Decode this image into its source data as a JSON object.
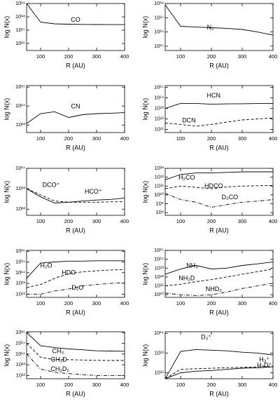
{
  "chart_data": [
    {
      "type": "line",
      "xlabel": "R (AU)",
      "ylabel": "log N(x)",
      "log_y": true,
      "x": [
        50,
        100,
        150,
        200,
        250,
        300,
        350,
        400
      ],
      "xlim": [
        50,
        400
      ],
      "xticks": [
        100,
        200,
        300,
        400
      ],
      "ylim": [
        3000000000000000.0,
        1e+19
      ],
      "yticks": [
        {
          "value": 1e+16,
          "label": "10¹⁶"
        },
        {
          "value": 1e+17,
          "label": "10¹⁷"
        },
        {
          "value": 1e+18,
          "label": "10¹⁸"
        },
        {
          "value": 1e+19,
          "label": "10¹⁹"
        }
      ],
      "series": [
        {
          "name": "CO",
          "color": "#000000",
          "style": "solid",
          "values": [
            1e+19,
            4e+17,
            3e+17,
            2.8e+17,
            2.7e+17,
            2.65e+17,
            2.6e+17,
            2.6e+17
          ]
        }
      ]
    },
    {
      "type": "line",
      "xlabel": "R (AU)",
      "ylabel": "log N(x)",
      "log_y": true,
      "x": [
        50,
        100,
        150,
        200,
        250,
        300,
        350,
        400
      ],
      "xlim": [
        50,
        400
      ],
      "xticks": [
        100,
        200,
        300,
        400
      ],
      "ylim": [
        500000000000000.0,
        1e+18
      ],
      "yticks": [
        {
          "value": 1000000000000000.0,
          "label": "10¹⁵"
        },
        {
          "value": 1e+16,
          "label": "10¹⁶"
        },
        {
          "value": 1e+17,
          "label": "10¹⁷"
        },
        {
          "value": 1e+18,
          "label": "10¹⁸"
        }
      ],
      "series": [
        {
          "name": "N₂",
          "color": "#000000",
          "style": "solid",
          "values": [
            8e+17,
            2.5e+16,
            2.2e+16,
            2e+16,
            1.8e+16,
            1.5e+16,
            1e+16,
            6000000000000000.0
          ]
        }
      ]
    },
    {
      "type": "line",
      "xlabel": "R (AU)",
      "ylabel": "log N(x)",
      "log_y": true,
      "x": [
        50,
        100,
        150,
        200,
        250,
        300,
        350,
        400
      ],
      "xlim": [
        50,
        400
      ],
      "xticks": [
        100,
        200,
        300,
        400
      ],
      "ylim": [
        4000000000000.0,
        1200000000000000.0
      ],
      "yticks": [
        {
          "value": 10000000000000.0,
          "label": "10¹³"
        },
        {
          "value": 100000000000000.0,
          "label": "10¹⁴"
        },
        {
          "value": 1000000000000000.0,
          "label": "10¹⁵"
        }
      ],
      "series": [
        {
          "name": "CN",
          "color": "#000000",
          "style": "solid",
          "values": [
            12000000000000.0,
            40000000000000.0,
            50000000000000.0,
            25000000000000.0,
            35000000000000.0,
            40000000000000.0,
            42000000000000.0,
            45000000000000.0
          ]
        }
      ]
    },
    {
      "type": "line",
      "xlabel": "R (AU)",
      "ylabel": "log N(x)",
      "log_y": true,
      "x": [
        50,
        100,
        150,
        200,
        250,
        300,
        350,
        400
      ],
      "xlim": [
        50,
        400
      ],
      "xticks": [
        100,
        200,
        300,
        400
      ],
      "ylim": [
        50000000000.0,
        1500000000000000.0
      ],
      "yticks": [
        {
          "value": 100000000000.0,
          "label": "10¹¹"
        },
        {
          "value": 1000000000000.0,
          "label": "10¹²"
        },
        {
          "value": 10000000000000.0,
          "label": "10¹³"
        },
        {
          "value": 100000000000000.0,
          "label": "10¹⁴"
        },
        {
          "value": 1000000000000000.0,
          "label": "10¹⁵"
        }
      ],
      "series": [
        {
          "name": "HCN",
          "color": "#000000",
          "style": "solid",
          "values": [
            10000000000000.0,
            30000000000000.0,
            30000000000000.0,
            25000000000000.0,
            27000000000000.0,
            28000000000000.0,
            29000000000000.0,
            30000000000000.0
          ]
        },
        {
          "name": "DCN",
          "color": "#000000",
          "style": "dashed",
          "values": [
            400000000000.0,
            300000000000.0,
            200000000000.0,
            300000000000.0,
            500000000000.0,
            800000000000.0,
            1000000000000.0,
            1200000000000.0
          ]
        }
      ]
    },
    {
      "type": "line",
      "xlabel": "R (AU)",
      "ylabel": "log N(x)",
      "log_y": true,
      "x": [
        50,
        100,
        150,
        200,
        250,
        300,
        350,
        400
      ],
      "xlim": [
        50,
        400
      ],
      "xticks": [
        100,
        200,
        300,
        400
      ],
      "ylim": [
        500000000000.0,
        100000000000000.0
      ],
      "yticks": [
        {
          "value": 1000000000000.0,
          "label": "10¹²"
        },
        {
          "value": 10000000000000.0,
          "label": "10¹³"
        },
        {
          "value": 100000000000000.0,
          "label": "10¹⁴"
        }
      ],
      "series": [
        {
          "name": "DCO⁺",
          "color": "#000000",
          "style": "dashed",
          "values": [
            10000000000000.0,
            5000000000000.0,
            2500000000000.0,
            2200000000000.0,
            2200000000000.0,
            2200000000000.0,
            2300000000000.0,
            2300000000000.0
          ]
        },
        {
          "name": "HCO⁺",
          "color": "#000000",
          "style": "solid",
          "values": [
            10000000000000.0,
            4000000000000.0,
            2000000000000.0,
            2200000000000.0,
            2500000000000.0,
            2800000000000.0,
            3000000000000.0,
            3500000000000.0
          ]
        }
      ]
    },
    {
      "type": "line",
      "xlabel": "R (AU)",
      "ylabel": "log N(x)",
      "log_y": true,
      "x": [
        50,
        100,
        150,
        200,
        250,
        300,
        350,
        400
      ],
      "xlim": [
        50,
        400
      ],
      "xticks": [
        100,
        200,
        300,
        400
      ],
      "ylim": [
        50000000.0,
        10000000000000.0
      ],
      "yticks": [
        {
          "value": 100000000.0,
          "label": "10⁸"
        },
        {
          "value": 1000000000.0,
          "label": "10⁹"
        },
        {
          "value": 10000000000.0,
          "label": "10¹⁰"
        },
        {
          "value": 100000000000.0,
          "label": "10¹¹"
        },
        {
          "value": 1000000000000.0,
          "label": "10¹²"
        },
        {
          "value": 10000000000000.0,
          "label": "10¹³"
        }
      ],
      "series": [
        {
          "name": "H₂CO",
          "color": "#000000",
          "style": "solid",
          "values": [
            500000000000.0,
            2000000000000.0,
            3000000000000.0,
            3000000000000.0,
            3500000000000.0,
            4000000000000.0,
            4000000000000.0,
            4000000000000.0
          ]
        },
        {
          "name": "HDCO",
          "color": "#000000",
          "style": "dashed",
          "values": [
            50000000000.0,
            100000000000.0,
            70000000000.0,
            50000000000.0,
            80000000000.0,
            100000000000.0,
            110000000000.0,
            120000000000.0
          ]
        },
        {
          "name": "D₂CO",
          "color": "#000000",
          "style": "dashdot",
          "values": [
            15000000000.0,
            3000000000.0,
            1500000000.0,
            400000000.0,
            800000000.0,
            1500000000.0,
            2000000000.0,
            3000000000.0
          ]
        }
      ]
    },
    {
      "type": "line",
      "xlabel": "R (AU)",
      "ylabel": "log N(x)",
      "log_y": true,
      "x": [
        50,
        100,
        150,
        200,
        250,
        300,
        350,
        400
      ],
      "xlim": [
        50,
        400
      ],
      "xticks": [
        100,
        200,
        300,
        400
      ],
      "ylim": [
        500000000000.0,
        1.2e+16
      ],
      "yticks": [
        {
          "value": 1000000000000.0,
          "label": "10¹²"
        },
        {
          "value": 10000000000000.0,
          "label": "10¹³"
        },
        {
          "value": 100000000000000.0,
          "label": "10¹⁴"
        },
        {
          "value": 1000000000000000.0,
          "label": "10¹⁵"
        },
        {
          "value": 1e+16,
          "label": "10¹⁶"
        }
      ],
      "series": [
        {
          "name": "H₂O",
          "color": "#000000",
          "style": "solid",
          "values": [
            30000000000000.0,
            800000000000000.0,
            1000000000000000.0,
            1200000000000000.0,
            1200000000000000.0,
            1300000000000000.0,
            1300000000000000.0,
            1300000000000000.0
          ]
        },
        {
          "name": "HDO",
          "color": "#000000",
          "style": "dashed",
          "values": [
            4000000000000.0,
            8000000000000.0,
            30000000000000.0,
            80000000000000.0,
            120000000000000.0,
            150000000000000.0,
            180000000000000.0,
            200000000000000.0
          ]
        },
        {
          "name": "D₂O",
          "color": "#000000",
          "style": "dashdot",
          "values": [
            1000000000000.0,
            1000000000000.0,
            2000000000000.0,
            3000000000000.0,
            6000000000000.0,
            8000000000000.0,
            10000000000000.0,
            12000000000000.0
          ]
        }
      ]
    },
    {
      "type": "line",
      "xlabel": "R (AU)",
      "ylabel": "log N(x)",
      "log_y": true,
      "x": [
        50,
        100,
        150,
        200,
        250,
        300,
        350,
        400
      ],
      "xlim": [
        50,
        400
      ],
      "xticks": [
        100,
        200,
        300,
        400
      ],
      "ylim": [
        5000000000.0,
        1000000000000000.0
      ],
      "yticks": [
        {
          "value": 10000000000.0,
          "label": "10¹⁰"
        },
        {
          "value": 100000000000.0,
          "label": "10¹¹"
        },
        {
          "value": 1000000000000.0,
          "label": "10¹²"
        },
        {
          "value": 10000000000000.0,
          "label": "10¹³"
        },
        {
          "value": 100000000000000.0,
          "label": "10¹⁴"
        },
        {
          "value": 1000000000000000.0,
          "label": "10¹⁵"
        }
      ],
      "series": [
        {
          "name": "NH₃",
          "color": "#000000",
          "style": "solid",
          "values": [
            2000000000000.0,
            8000000000000.0,
            20000000000000.0,
            8000000000000.0,
            10000000000000.0,
            20000000000000.0,
            30000000000000.0,
            50000000000000.0
          ]
        },
        {
          "name": "NH₂D",
          "color": "#000000",
          "style": "dashed",
          "values": [
            100000000000.0,
            150000000000.0,
            300000000000.0,
            500000000000.0,
            1000000000000.0,
            2000000000000.0,
            4000000000000.0,
            8000000000000.0
          ]
        },
        {
          "name": "NHD₂",
          "color": "#000000",
          "style": "dashdot",
          "values": [
            15000000000.0,
            10000000000.0,
            8000000000.0,
            10000000000.0,
            20000000000.0,
            50000000000.0,
            100000000000.0,
            200000000000.0
          ]
        }
      ]
    },
    {
      "type": "line",
      "xlabel": "R (AU)",
      "ylabel": "log N(x)",
      "log_y": true,
      "x": [
        50,
        100,
        150,
        200,
        250,
        300,
        350,
        400
      ],
      "xlim": [
        50,
        400
      ],
      "xticks": [
        100,
        200,
        300,
        400
      ],
      "ylim": [
        500000000000.0,
        1.2e+16
      ],
      "yticks": [
        {
          "value": 1000000000000.0,
          "label": "10¹²"
        },
        {
          "value": 10000000000000.0,
          "label": "10¹³"
        },
        {
          "value": 100000000000000.0,
          "label": "10¹⁴"
        },
        {
          "value": 1000000000000000.0,
          "label": "10¹⁵"
        },
        {
          "value": 1e+16,
          "label": "10¹⁶"
        }
      ],
      "series": [
        {
          "name": "CH₄",
          "color": "#000000",
          "style": "solid",
          "values": [
            1e+16,
            600000000000000.0,
            400000000000000.0,
            300000000000000.0,
            250000000000000.0,
            200000000000000.0,
            190000000000000.0,
            180000000000000.0
          ]
        },
        {
          "name": "CH₃D",
          "color": "#000000",
          "style": "dashed",
          "values": [
            1000000000000000.0,
            50000000000000.0,
            30000000000000.0,
            30000000000000.0,
            28000000000000.0,
            26000000000000.0,
            25000000000000.0,
            25000000000000.0
          ]
        },
        {
          "name": "CH₂D₂",
          "color": "#000000",
          "style": "dashdot",
          "values": [
            100000000000000.0,
            4000000000000.0,
            2000000000000.0,
            1500000000000.0,
            1200000000000.0,
            1000000000000.0,
            1000000000000.0,
            1000000000000.0
          ]
        }
      ]
    },
    {
      "type": "line",
      "xlabel": "R (AU)",
      "ylabel": "log N(x)",
      "log_y": true,
      "x": [
        50,
        100,
        150,
        200,
        250,
        300,
        350,
        400
      ],
      "xlim": [
        50,
        400
      ],
      "xticks": [
        100,
        200,
        300,
        400
      ],
      "ylim": [
        500000000000.0,
        120000000000000.0
      ],
      "yticks": [
        {
          "value": 1000000000000.0,
          "label": "10¹²"
        },
        {
          "value": 10000000000000.0,
          "label": "10¹³"
        },
        {
          "value": 100000000000000.0,
          "label": "10¹⁴"
        }
      ],
      "series": [
        {
          "name": "D₃⁺",
          "color": "#000000",
          "style": "solid",
          "values": [
            500000000000.0,
            12000000000000.0,
            15000000000000.0,
            14000000000000.0,
            13000000000000.0,
            11000000000000.0,
            10000000000000.0,
            8000000000000.0
          ]
        },
        {
          "name": "H₃⁺",
          "color": "#000000",
          "style": "solid",
          "values": [
            500000000000.0,
            1000000000000.0,
            1200000000000.0,
            1300000000000.0,
            1500000000000.0,
            1700000000000.0,
            1800000000000.0,
            2000000000000.0
          ]
        },
        {
          "name": "H₂D⁺",
          "color": "#000000",
          "style": "dashed",
          "values": [
            500000000000.0,
            1500000000000.0,
            1600000000000.0,
            1700000000000.0,
            1800000000000.0,
            1900000000000.0,
            2000000000000.0,
            2200000000000.0
          ]
        }
      ]
    }
  ]
}
